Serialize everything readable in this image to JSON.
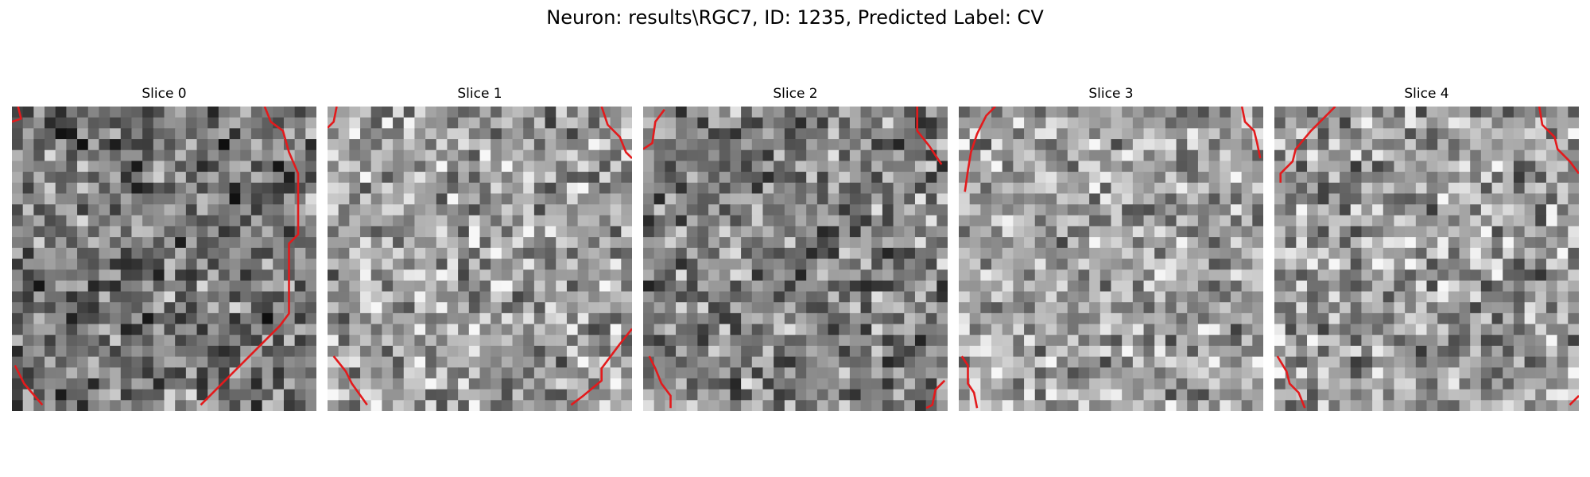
{
  "figure": {
    "title": "Neuron: results\\RGC7, ID: 1235, Predicted Label: CV"
  },
  "colors": {
    "contour": "#e31a1c",
    "background": "#ffffff"
  },
  "slices": [
    {
      "title": "Slice 0",
      "mean": 0.46,
      "seed": 11,
      "contours": [
        [
          [
            0.83,
            0.0
          ],
          [
            0.85,
            0.05
          ],
          [
            0.89,
            0.08
          ],
          [
            0.91,
            0.15
          ],
          [
            0.94,
            0.22
          ],
          [
            0.94,
            0.42
          ],
          [
            0.91,
            0.45
          ],
          [
            0.91,
            0.68
          ],
          [
            0.88,
            0.72
          ],
          [
            0.82,
            0.78
          ],
          [
            0.72,
            0.88
          ],
          [
            0.65,
            0.95
          ],
          [
            0.62,
            0.98
          ]
        ],
        [
          [
            0.02,
            0.0
          ],
          [
            0.03,
            0.04
          ],
          [
            0.0,
            0.05
          ]
        ],
        [
          [
            0.01,
            0.85
          ],
          [
            0.04,
            0.91
          ],
          [
            0.1,
            0.98
          ]
        ]
      ]
    },
    {
      "title": "Slice 1",
      "mean": 0.63,
      "seed": 27,
      "contours": [
        [
          [
            0.9,
            0.0
          ],
          [
            0.92,
            0.06
          ],
          [
            0.96,
            0.1
          ],
          [
            0.98,
            0.15
          ],
          [
            1.0,
            0.17
          ]
        ],
        [
          [
            0.03,
            0.0
          ],
          [
            0.02,
            0.05
          ],
          [
            0.0,
            0.07
          ]
        ],
        [
          [
            1.0,
            0.73
          ],
          [
            0.96,
            0.78
          ],
          [
            0.9,
            0.86
          ],
          [
            0.9,
            0.9
          ],
          [
            0.84,
            0.95
          ],
          [
            0.8,
            0.98
          ]
        ],
        [
          [
            0.02,
            0.82
          ],
          [
            0.06,
            0.87
          ],
          [
            0.08,
            0.91
          ],
          [
            0.13,
            0.98
          ]
        ]
      ]
    },
    {
      "title": "Slice 2",
      "mean": 0.5,
      "seed": 41,
      "contours": [
        [
          [
            0.9,
            0.0
          ],
          [
            0.9,
            0.08
          ],
          [
            0.94,
            0.13
          ],
          [
            0.98,
            0.19
          ]
        ],
        [
          [
            0.07,
            0.01
          ],
          [
            0.04,
            0.05
          ],
          [
            0.03,
            0.12
          ],
          [
            0.0,
            0.14
          ]
        ],
        [
          [
            0.02,
            0.82
          ],
          [
            0.04,
            0.86
          ],
          [
            0.06,
            0.91
          ],
          [
            0.09,
            0.95
          ],
          [
            0.09,
            0.99
          ]
        ],
        [
          [
            0.99,
            0.9
          ],
          [
            0.96,
            0.93
          ],
          [
            0.95,
            0.98
          ],
          [
            0.93,
            0.99
          ]
        ]
      ]
    },
    {
      "title": "Slice 3",
      "mean": 0.64,
      "seed": 53,
      "contours": [
        [
          [
            0.93,
            0.0
          ],
          [
            0.94,
            0.05
          ],
          [
            0.97,
            0.08
          ],
          [
            0.98,
            0.12
          ],
          [
            0.99,
            0.17
          ]
        ],
        [
          [
            0.12,
            0.0
          ],
          [
            0.09,
            0.03
          ],
          [
            0.06,
            0.09
          ],
          [
            0.04,
            0.15
          ],
          [
            0.03,
            0.21
          ],
          [
            0.02,
            0.28
          ]
        ],
        [
          [
            0.01,
            0.82
          ],
          [
            0.03,
            0.85
          ],
          [
            0.03,
            0.91
          ],
          [
            0.05,
            0.94
          ],
          [
            0.06,
            0.99
          ]
        ]
      ]
    },
    {
      "title": "Slice 4",
      "mean": 0.62,
      "seed": 67,
      "contours": [
        [
          [
            0.87,
            0.0
          ],
          [
            0.88,
            0.06
          ],
          [
            0.92,
            0.1
          ],
          [
            0.93,
            0.14
          ],
          [
            0.97,
            0.18
          ],
          [
            1.0,
            0.22
          ]
        ],
        [
          [
            0.2,
            0.0
          ],
          [
            0.12,
            0.08
          ],
          [
            0.07,
            0.14
          ],
          [
            0.06,
            0.18
          ],
          [
            0.02,
            0.22
          ],
          [
            0.02,
            0.25
          ]
        ],
        [
          [
            0.01,
            0.82
          ],
          [
            0.04,
            0.87
          ],
          [
            0.05,
            0.91
          ],
          [
            0.08,
            0.94
          ],
          [
            0.1,
            0.99
          ]
        ],
        [
          [
            1.0,
            0.95
          ],
          [
            0.97,
            0.98
          ]
        ]
      ]
    }
  ]
}
